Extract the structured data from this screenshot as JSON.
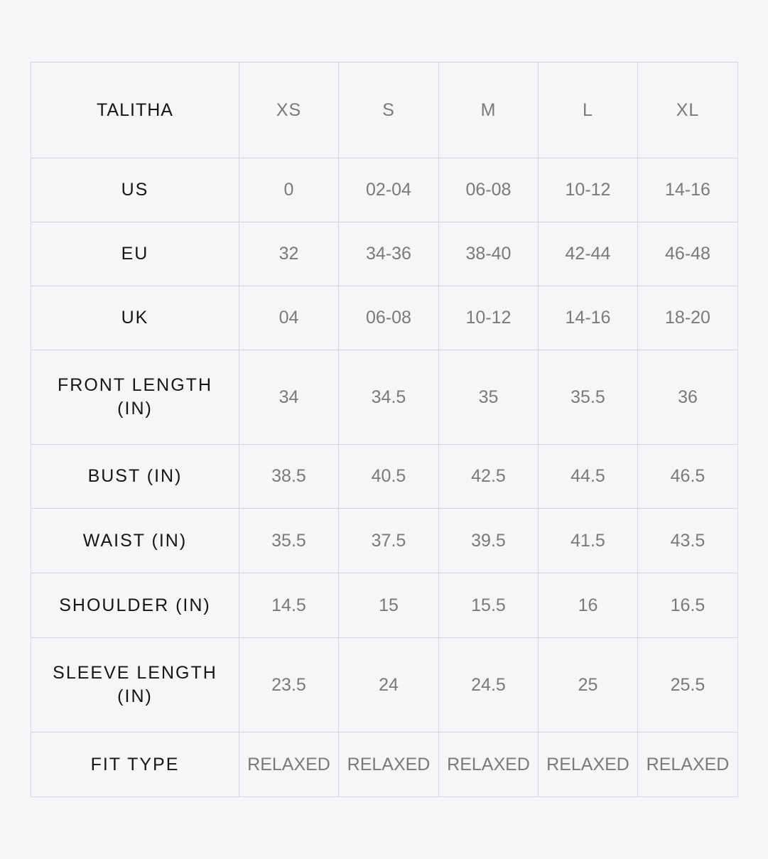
{
  "table": {
    "header": [
      "TALITHA",
      "XS",
      "S",
      "M",
      "L",
      "XL"
    ],
    "rows": [
      [
        "US",
        "0",
        "02-04",
        "06-08",
        "10-12",
        "14-16"
      ],
      [
        "EU",
        "32",
        "34-36",
        "38-40",
        "42-44",
        "46-48"
      ],
      [
        "UK",
        "04",
        "06-08",
        "10-12",
        "14-16",
        "18-20"
      ],
      [
        "FRONT LENGTH (IN)",
        "34",
        "34.5",
        "35",
        "35.5",
        "36"
      ],
      [
        "BUST (IN)",
        "38.5",
        "40.5",
        "42.5",
        "44.5",
        "46.5"
      ],
      [
        "WAIST (IN)",
        "35.5",
        "37.5",
        "39.5",
        "41.5",
        "43.5"
      ],
      [
        "SHOULDER (IN)",
        "14.5",
        "15",
        "15.5",
        "16",
        "16.5"
      ],
      [
        "SLEEVE LENGTH (IN)",
        "23.5",
        "24",
        "24.5",
        "25",
        "25.5"
      ],
      [
        "FIT TYPE",
        "RELAXED",
        "RELAXED",
        "RELAXED",
        "RELAXED",
        "RELAXED"
      ]
    ]
  }
}
